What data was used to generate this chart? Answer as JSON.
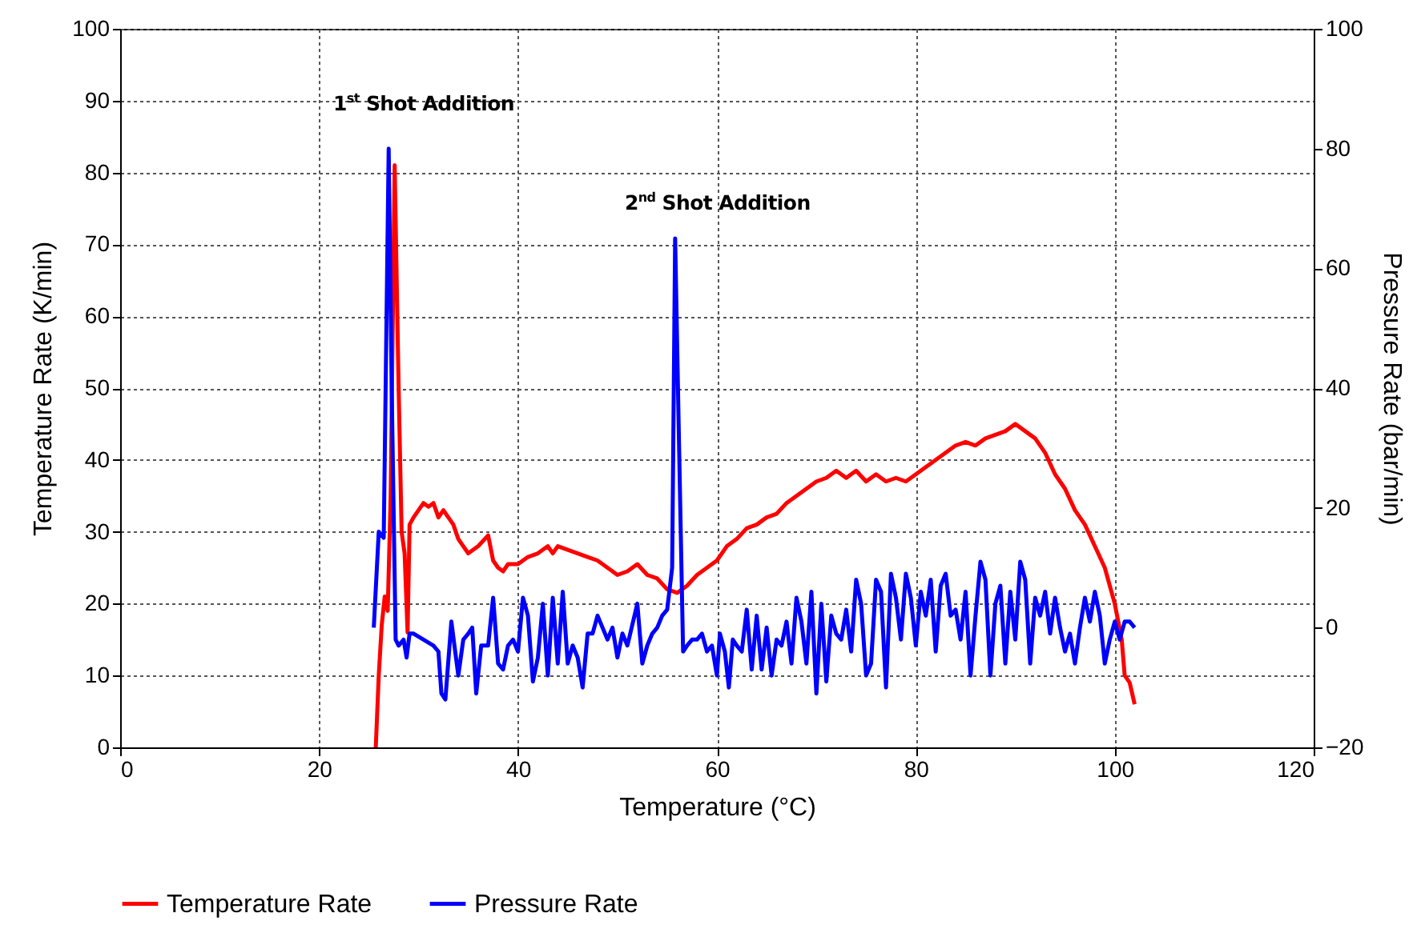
{
  "chart_data": {
    "type": "line",
    "xlabel": "Temperature (°C)",
    "ylabel": "Temperature Rate (K/min)",
    "y2label": "Pressure Rate (bar/min)",
    "xlim": [
      0,
      120
    ],
    "xticks": [
      0,
      20,
      40,
      60,
      80,
      100,
      120
    ],
    "ylim": [
      0,
      100
    ],
    "yticks": [
      0,
      10,
      20,
      30,
      40,
      50,
      60,
      70,
      80,
      90,
      100
    ],
    "y2lim": [
      -20,
      100
    ],
    "y2ticks": [
      -20,
      0,
      20,
      40,
      60,
      80,
      100
    ],
    "grid": true,
    "legend": "bottom",
    "line_style": "solid",
    "marker": "none",
    "annotations": [
      "1$^{st}$ Shot Addition",
      "2$^{nd}$ Shot Addition"
    ],
    "series": [
      {
        "name": "Temperature Rate",
        "color": "#ff0000",
        "x": [
          25.7,
          26.0,
          26.3,
          26.6,
          26.9,
          27.2,
          27.6,
          28.0,
          28.3,
          28.6,
          28.9,
          29.1,
          29.5,
          30.0,
          30.5,
          31.0,
          31.5,
          32.0,
          32.5,
          33.0,
          33.5,
          34.0,
          34.5,
          35.0,
          36.0,
          37.0,
          37.5,
          38.0,
          38.5,
          39,
          40,
          41,
          42,
          43,
          43.5,
          44,
          45,
          46,
          47,
          48,
          49,
          50,
          51,
          52,
          53,
          54,
          55,
          56,
          57,
          58,
          59,
          60,
          61,
          62,
          63,
          64,
          65,
          66,
          67,
          68,
          69,
          70,
          71,
          72,
          73,
          74,
          75,
          76,
          77,
          78,
          79,
          80,
          81,
          82,
          83,
          84,
          85,
          86,
          87,
          88,
          89,
          90,
          91,
          92,
          93,
          94,
          95,
          96,
          97,
          98,
          99,
          100,
          100.7,
          101,
          101.5,
          102
        ],
        "values": [
          0,
          10,
          17,
          21,
          19,
          35,
          81,
          50,
          30,
          27,
          16,
          31,
          32,
          33,
          34,
          33.5,
          34,
          32,
          33,
          32,
          31,
          29,
          28,
          27,
          28,
          29.5,
          26,
          25,
          24.5,
          25.5,
          25.5,
          26.5,
          27,
          28,
          27,
          28,
          27.5,
          27,
          26.5,
          26,
          25,
          24,
          24.5,
          25.5,
          24,
          23.5,
          22,
          21.5,
          22.5,
          24,
          25,
          26,
          28,
          29,
          30.5,
          31,
          32,
          32.5,
          34,
          35,
          36,
          37,
          37.5,
          38.5,
          37.5,
          38.5,
          37,
          38,
          37,
          37.5,
          37,
          38,
          39,
          40,
          41,
          42,
          42.5,
          42,
          43,
          43.5,
          44,
          45,
          44,
          43,
          41,
          38,
          36,
          33,
          31,
          28,
          25,
          20,
          15,
          10,
          9,
          6
        ]
      },
      {
        "name": "Pressure Rate",
        "color": "#0000ff",
        "axis": "y2",
        "x": [
          25.5,
          26.0,
          26.5,
          27.0,
          27.3,
          27.7,
          28.0,
          28.5,
          28.8,
          29.1,
          29.5,
          30.5,
          31.5,
          32,
          32.3,
          32.7,
          33.3,
          34,
          34.5,
          35,
          35.4,
          35.8,
          36.3,
          37,
          37.5,
          38,
          38.5,
          39,
          39.5,
          40,
          40.5,
          41,
          41.5,
          42,
          42.5,
          43,
          43.5,
          44,
          44.5,
          45,
          45.5,
          46,
          46.5,
          47,
          47.5,
          48,
          48.5,
          49,
          49.5,
          50,
          50.5,
          51,
          52,
          52.5,
          53,
          53.5,
          54,
          54.5,
          55,
          55.5,
          55.8,
          56.2,
          56.6,
          57,
          57.5,
          58,
          58.5,
          59,
          59.5,
          60,
          60.3,
          60.8,
          61.2,
          61.6,
          62,
          62.5,
          63,
          63.5,
          64,
          64.5,
          65,
          65.5,
          66,
          66.5,
          67,
          67.5,
          68,
          68.5,
          69,
          69.5,
          70,
          70.5,
          71,
          71.5,
          72,
          72.5,
          73,
          73.5,
          74,
          74.5,
          75,
          75.5,
          76,
          76.5,
          77,
          77.5,
          78,
          78.5,
          79,
          79.5,
          80,
          80.5,
          81,
          81.5,
          82,
          82.5,
          83,
          83.5,
          84,
          84.5,
          85,
          85.5,
          86,
          86.5,
          87,
          87.5,
          88,
          88.5,
          89,
          89.5,
          90,
          90.5,
          91,
          91.5,
          92,
          92.5,
          93,
          93.5,
          94,
          94.5,
          95,
          95.5,
          96,
          96.5,
          97,
          97.5,
          98,
          98.5,
          99,
          99.5,
          100,
          100.5,
          101,
          101.5,
          102
        ],
        "values": [
          0,
          16,
          15,
          80,
          40,
          -2,
          -3,
          -2,
          -5,
          -1,
          -1,
          -2,
          -3,
          -4,
          -11,
          -12,
          1,
          -8,
          -2,
          -1,
          0,
          -11,
          -3,
          -3,
          5,
          -6,
          -7,
          -3,
          -2,
          -4,
          5,
          2,
          -9,
          -5,
          4,
          -8,
          5,
          -6,
          6,
          -6,
          -3,
          -5,
          -10,
          -1,
          -1,
          2,
          0,
          -2,
          0,
          -5,
          -1,
          -3,
          4,
          -6,
          -3,
          -1,
          0,
          2,
          3,
          10,
          65,
          30,
          -4,
          -3,
          -2,
          -2,
          -1,
          -4,
          -3,
          -8,
          -1,
          -4,
          -10,
          -2,
          -3,
          -4,
          3,
          -7,
          2,
          -7,
          0,
          -8,
          -2,
          -3,
          1,
          -6,
          5,
          1,
          -6,
          6,
          -11,
          4,
          -9,
          2,
          -1,
          -2,
          3,
          -4,
          8,
          4,
          -8,
          -6,
          8,
          6,
          -10,
          9,
          5,
          -2,
          9,
          5,
          -3,
          6,
          2,
          8,
          -4,
          7,
          9,
          2,
          3,
          -2,
          6,
          -8,
          2,
          11,
          8,
          -8,
          4,
          7,
          -6,
          6,
          -2,
          11,
          8,
          -6,
          5,
          2,
          6,
          -1,
          5,
          0,
          -4,
          -1,
          -6,
          0,
          5,
          1,
          6,
          2,
          -6,
          -2,
          1,
          -2,
          1,
          1,
          0
        ]
      }
    ]
  }
}
